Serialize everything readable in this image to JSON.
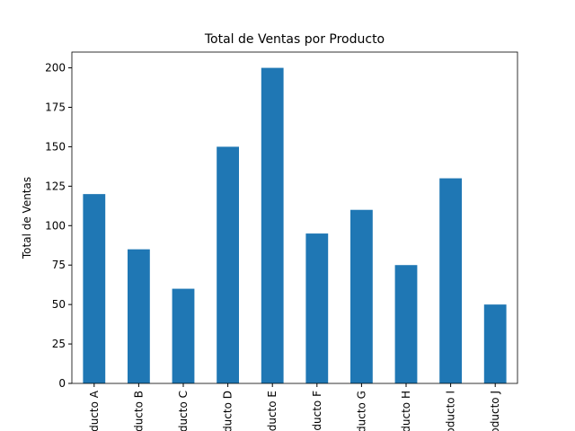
{
  "chart_data": {
    "type": "bar",
    "title": "Total de Ventas por Producto",
    "y_label": "Total de Ventas",
    "categories": [
      "Producto A",
      "Producto B",
      "Producto C",
      "Producto D",
      "Producto E",
      "Producto F",
      "Producto G",
      "Producto H",
      "Producto I",
      "Producto J"
    ],
    "values": [
      120,
      85,
      60,
      150,
      200,
      95,
      110,
      75,
      130,
      50
    ],
    "color": "#1f77b4",
    "ylim": [
      0,
      210
    ],
    "yticks": [
      0,
      25,
      50,
      75,
      100,
      125,
      150,
      175,
      200
    ],
    "grid": false
  }
}
